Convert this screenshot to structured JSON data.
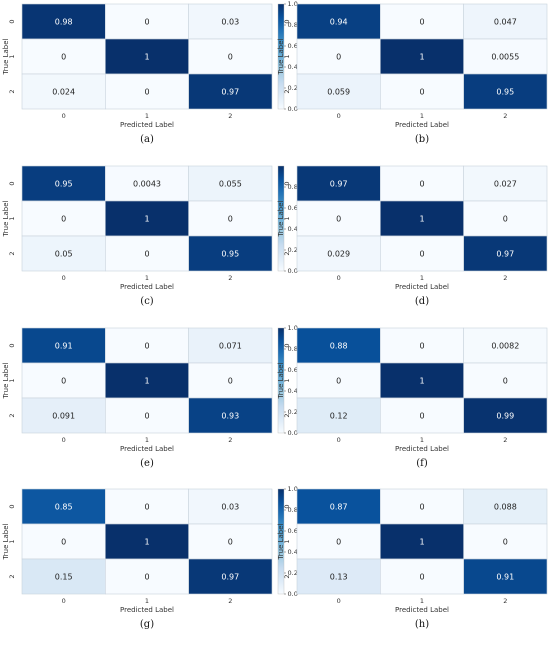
{
  "colors": {
    "cmap": [
      "#f7fbff",
      "#deebf7",
      "#c6dbef",
      "#9ecae1",
      "#6baed6",
      "#4292c6",
      "#2171b5",
      "#08519c",
      "#08306b"
    ],
    "cell_border": "#c8d2dc",
    "text_dark": "#222222",
    "text_light": "#ffffff"
  },
  "chart_data": [
    {
      "type": "heatmap",
      "caption": "(a)",
      "xlabel": "Predicted Label",
      "ylabel": "True Label",
      "x_ticks": [
        "0",
        "1",
        "2"
      ],
      "y_ticks": [
        "0",
        "1",
        "2"
      ],
      "values": [
        [
          0.98,
          0,
          0.03
        ],
        [
          0,
          1,
          0
        ],
        [
          0.024,
          0,
          0.97
        ]
      ],
      "cell_labels": [
        [
          "0.98",
          "0",
          "0.03"
        ],
        [
          "0",
          "1",
          "0"
        ],
        [
          "0.024",
          "0",
          "0.97"
        ]
      ],
      "colorbar_ticks": [
        "0.0",
        "0.2",
        "0.4",
        "0.6",
        "0.8",
        "1.0"
      ],
      "colorbar_range": [
        0,
        1
      ]
    },
    {
      "type": "heatmap",
      "caption": "(b)",
      "xlabel": "Predicted Label",
      "ylabel": "True Label",
      "x_ticks": [
        "0",
        "1",
        "2"
      ],
      "y_ticks": [
        "0",
        "1",
        "2"
      ],
      "values": [
        [
          0.94,
          0,
          0.047
        ],
        [
          0,
          1,
          0.0055
        ],
        [
          0.059,
          0,
          0.95
        ]
      ],
      "cell_labels": [
        [
          "0.94",
          "0",
          "0.047"
        ],
        [
          "0",
          "1",
          "0.0055"
        ],
        [
          "0.059",
          "0",
          "0.95"
        ]
      ],
      "colorbar_ticks": [
        "0.0",
        "0.2",
        "0.4",
        "0.6",
        "0.8"
      ],
      "colorbar_range": [
        0,
        1
      ]
    },
    {
      "type": "heatmap",
      "caption": "(c)",
      "xlabel": "Predicted Label",
      "ylabel": "True Label",
      "x_ticks": [
        "0",
        "1",
        "2"
      ],
      "y_ticks": [
        "0",
        "1",
        "2"
      ],
      "values": [
        [
          0.95,
          0.0043,
          0.055
        ],
        [
          0,
          1,
          0
        ],
        [
          0.05,
          0,
          0.95
        ]
      ],
      "cell_labels": [
        [
          "0.95",
          "0.0043",
          "0.055"
        ],
        [
          "0",
          "1",
          "0"
        ],
        [
          "0.05",
          "0",
          "0.95"
        ]
      ],
      "colorbar_ticks": [
        "0.0",
        "0.2",
        "0.4",
        "0.6",
        "0.8"
      ],
      "colorbar_range": [
        0,
        1
      ]
    },
    {
      "type": "heatmap",
      "caption": "(d)",
      "xlabel": "Predicted Label",
      "ylabel": "True Label",
      "x_ticks": [
        "0",
        "1",
        "2"
      ],
      "y_ticks": [
        "0",
        "1",
        "2"
      ],
      "values": [
        [
          0.97,
          0,
          0.027
        ],
        [
          0,
          1,
          0
        ],
        [
          0.029,
          0,
          0.97
        ]
      ],
      "cell_labels": [
        [
          "0.97",
          "0",
          "0.027"
        ],
        [
          "0",
          "1",
          "0"
        ],
        [
          "0.029",
          "0",
          "0.97"
        ]
      ],
      "colorbar_ticks": [
        "0.0",
        "0.2",
        "0.4",
        "0.6",
        "0.8",
        "1.0"
      ],
      "colorbar_range": [
        0,
        1
      ]
    },
    {
      "type": "heatmap",
      "caption": "(e)",
      "xlabel": "Predicted Label",
      "ylabel": "True Label",
      "x_ticks": [
        "0",
        "1",
        "2"
      ],
      "y_ticks": [
        "0",
        "1",
        "2"
      ],
      "values": [
        [
          0.91,
          0,
          0.071
        ],
        [
          0,
          1,
          0
        ],
        [
          0.091,
          0,
          0.93
        ]
      ],
      "cell_labels": [
        [
          "0.91",
          "0",
          "0.071"
        ],
        [
          "0",
          "1",
          "0"
        ],
        [
          "0.091",
          "0",
          "0.93"
        ]
      ],
      "colorbar_ticks": [
        "0.0",
        "0.2",
        "0.4",
        "0.6",
        "0.8",
        "1.0"
      ],
      "colorbar_range": [
        0,
        1
      ]
    },
    {
      "type": "heatmap",
      "caption": "(f)",
      "xlabel": "Predicted Label",
      "ylabel": "True Label",
      "x_ticks": [
        "0",
        "1",
        "2"
      ],
      "y_ticks": [
        "0",
        "1",
        "2"
      ],
      "values": [
        [
          0.88,
          0,
          0.0082
        ],
        [
          0,
          1,
          0
        ],
        [
          0.12,
          0,
          0.99
        ]
      ],
      "cell_labels": [
        [
          "0.88",
          "0",
          "0.0082"
        ],
        [
          "0",
          "1",
          "0"
        ],
        [
          "0.12",
          "0",
          "0.99"
        ]
      ],
      "colorbar_ticks": [
        "0.0",
        "0.2",
        "0.4",
        "0.6",
        "0.8",
        "1.0"
      ],
      "colorbar_range": [
        0,
        1
      ]
    },
    {
      "type": "heatmap",
      "caption": "(g)",
      "xlabel": "Predicted Label",
      "ylabel": "True Label",
      "x_ticks": [
        "0",
        "1",
        "2"
      ],
      "y_ticks": [
        "0",
        "1",
        "2"
      ],
      "values": [
        [
          0.85,
          0,
          0.03
        ],
        [
          0,
          1,
          0
        ],
        [
          0.15,
          0,
          0.97
        ]
      ],
      "cell_labels": [
        [
          "0.85",
          "0",
          "0.03"
        ],
        [
          "0",
          "1",
          "0"
        ],
        [
          "0.15",
          "0",
          "0.97"
        ]
      ],
      "colorbar_ticks": [
        "0.0",
        "0.2",
        "0.4",
        "0.6",
        "0.8",
        "1.0"
      ],
      "colorbar_range": [
        0,
        1
      ]
    },
    {
      "type": "heatmap",
      "caption": "(h)",
      "xlabel": "Predicted Label",
      "ylabel": "True Label",
      "x_ticks": [
        "0",
        "1",
        "2"
      ],
      "y_ticks": [
        "0",
        "1",
        "2"
      ],
      "values": [
        [
          0.87,
          0,
          0.088
        ],
        [
          0,
          1,
          0
        ],
        [
          0.13,
          0,
          0.91
        ]
      ],
      "cell_labels": [
        [
          "0.87",
          "0",
          "0.088"
        ],
        [
          "0",
          "1",
          "0"
        ],
        [
          "0.13",
          "0",
          "0.91"
        ]
      ],
      "colorbar_ticks": [
        "0.0",
        "0.2",
        "0.4",
        "0.6",
        "0.8",
        "1.0"
      ],
      "colorbar_range": [
        0,
        1
      ]
    }
  ]
}
